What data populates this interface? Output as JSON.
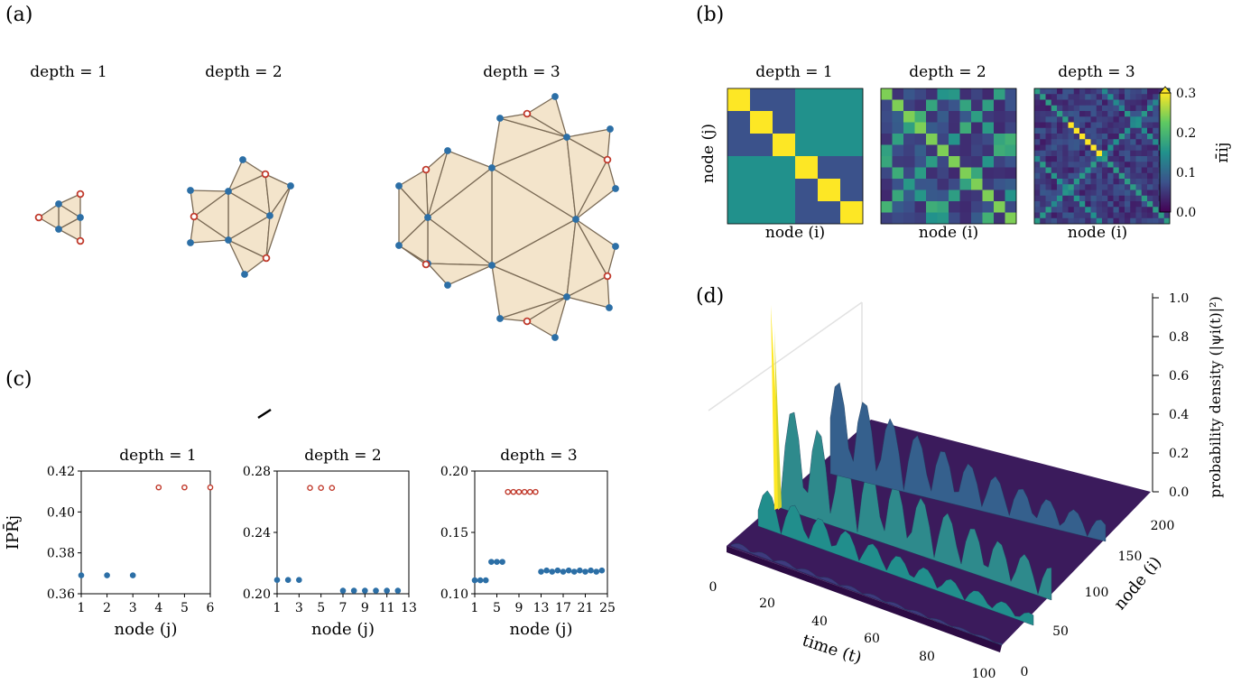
{
  "panel_labels": {
    "a": "(a)",
    "b": "(b)",
    "c": "(c)",
    "d": "(d)"
  },
  "depth_titles": [
    "depth = 1",
    "depth = 2",
    "depth = 3"
  ],
  "colors": {
    "fill": "#f3e4cb",
    "edge": "#7a6a55",
    "node_blue": "#2c6fa6",
    "node_red": "#c0392b",
    "viridis_low": "#440154",
    "viridis_mid": "#21918c",
    "viridis_high": "#fde725"
  },
  "panel_b": {
    "ylabel": "node (j)",
    "xlabel": "node (i)",
    "colorbar": {
      "label": "π̄ij",
      "ticks": [
        "0.3",
        "0.2",
        "0.1",
        "0.0"
      ]
    }
  },
  "chart_data": [
    {
      "type": "scatter",
      "title": "depth = 1",
      "xlabel": "node (j)",
      "ylabel": "IPR̄j",
      "xlim": [
        1,
        6
      ],
      "ylim": [
        0.36,
        0.42
      ],
      "xticks": [
        "1",
        "2",
        "3",
        "4",
        "5",
        "6"
      ],
      "yticks": [
        "0.42",
        "0.40",
        "0.38",
        "0.36"
      ],
      "series": [
        {
          "marker": "filled",
          "x": [
            1,
            2,
            3
          ],
          "y": [
            0.369,
            0.369,
            0.369
          ]
        },
        {
          "marker": "hollow",
          "x": [
            4,
            5,
            6
          ],
          "y": [
            0.412,
            0.412,
            0.412
          ]
        }
      ]
    },
    {
      "type": "scatter",
      "title": "depth = 2",
      "xlabel": "node (j)",
      "ylabel": "",
      "xlim": [
        1,
        13
      ],
      "ylim": [
        0.2,
        0.28
      ],
      "xticks": [
        "1",
        "3",
        "5",
        "7",
        "9",
        "11",
        "13"
      ],
      "yticks": [
        "0.28",
        "0.24",
        "0.20"
      ],
      "series": [
        {
          "marker": "filled",
          "x": [
            1,
            2,
            3,
            7,
            8,
            9,
            10,
            11,
            12
          ],
          "y": [
            0.209,
            0.209,
            0.209,
            0.202,
            0.202,
            0.202,
            0.202,
            0.202,
            0.202
          ]
        },
        {
          "marker": "hollow",
          "x": [
            4,
            5,
            6
          ],
          "y": [
            0.269,
            0.269,
            0.269
          ]
        }
      ]
    },
    {
      "type": "scatter",
      "title": "depth = 3",
      "xlabel": "node (j)",
      "ylabel": "",
      "xlim": [
        1,
        25
      ],
      "ylim": [
        0.1,
        0.2
      ],
      "xticks": [
        "1",
        "5",
        "9",
        "13",
        "17",
        "21",
        "25"
      ],
      "yticks": [
        "0.20",
        "0.15",
        "0.10"
      ],
      "series": [
        {
          "marker": "filled",
          "x": [
            1,
            2,
            3,
            4,
            5,
            6,
            13,
            14,
            15,
            16,
            17,
            18,
            19,
            20,
            21,
            22,
            23,
            24
          ],
          "y": [
            0.111,
            0.111,
            0.111,
            0.126,
            0.126,
            0.126,
            0.118,
            0.119,
            0.118,
            0.119,
            0.118,
            0.119,
            0.118,
            0.119,
            0.118,
            0.119,
            0.118,
            0.119
          ]
        },
        {
          "marker": "hollow",
          "x": [
            7,
            8,
            9,
            10,
            11,
            12
          ],
          "y": [
            0.183,
            0.183,
            0.183,
            0.183,
            0.183,
            0.183
          ]
        }
      ]
    },
    {
      "type": "area",
      "title": "",
      "xlabel": "time (t)",
      "ylabel": "node (i)",
      "zlabel": "probability density (|ψi(t)|²)",
      "xticks": [
        "0",
        "20",
        "40",
        "60",
        "80",
        "100"
      ],
      "yticks": [
        "0",
        "50",
        "100",
        "150",
        "200"
      ],
      "zticks": [
        "0.0",
        "0.2",
        "0.4",
        "0.6",
        "0.8",
        "1.0"
      ]
    }
  ]
}
